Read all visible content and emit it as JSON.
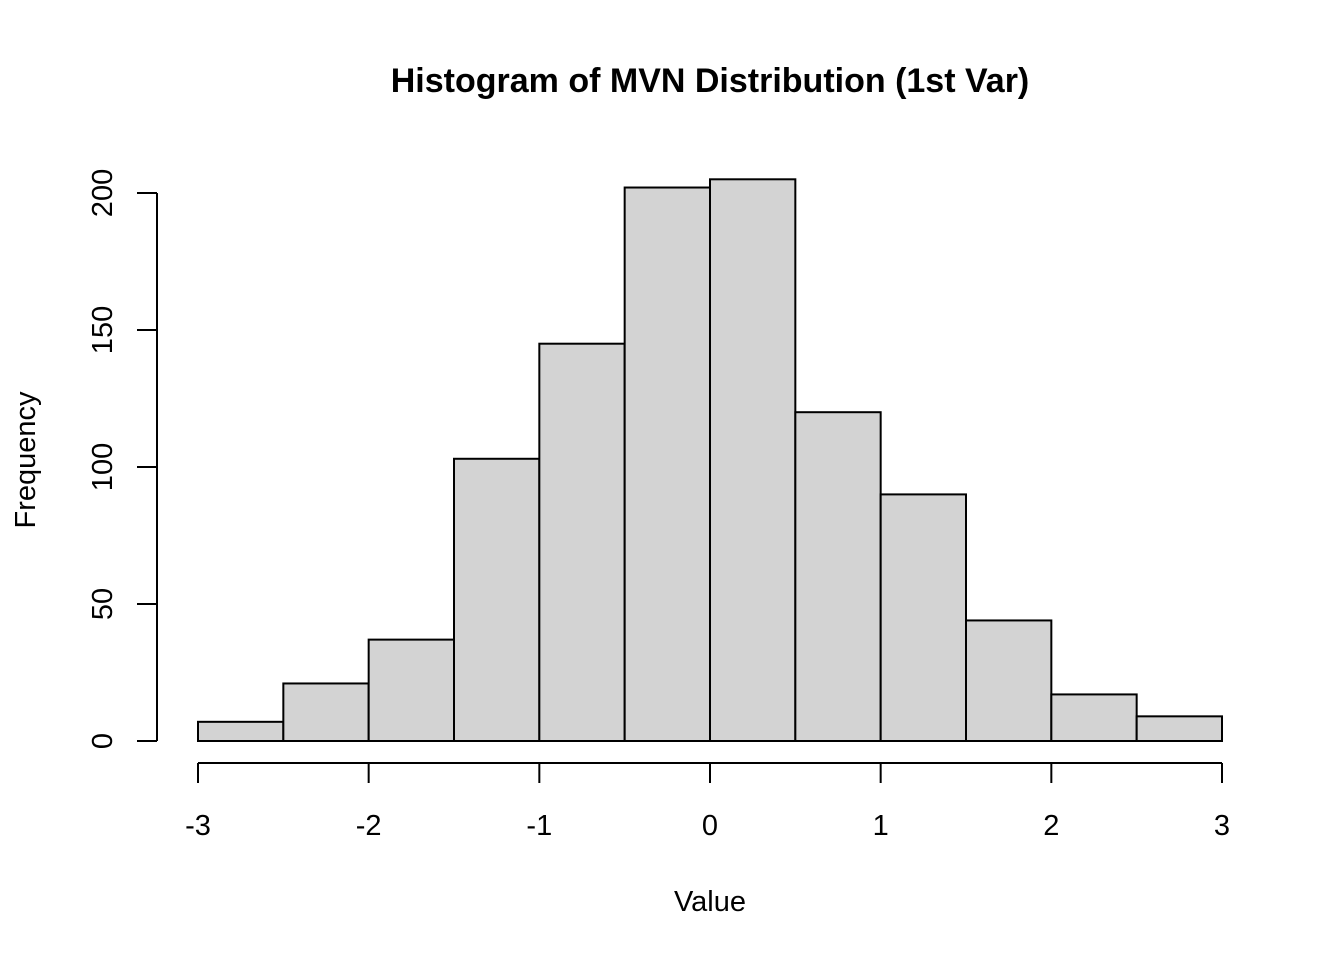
{
  "chart_data": {
    "type": "bar",
    "title": "Histogram of MVN Distribution (1st Var)",
    "xlabel": "Value",
    "ylabel": "Frequency",
    "bins": [
      [
        -3.0,
        -2.5
      ],
      [
        -2.5,
        -2.0
      ],
      [
        -2.0,
        -1.5
      ],
      [
        -1.5,
        -1.0
      ],
      [
        -1.0,
        -0.5
      ],
      [
        -0.5,
        0.0
      ],
      [
        0.0,
        0.5
      ],
      [
        0.5,
        1.0
      ],
      [
        1.0,
        1.5
      ],
      [
        1.5,
        2.0
      ],
      [
        2.0,
        2.5
      ],
      [
        2.5,
        3.0
      ]
    ],
    "values": [
      7,
      21,
      37,
      103,
      145,
      202,
      205,
      120,
      90,
      44,
      17,
      9
    ],
    "xlim": [
      -3,
      3
    ],
    "ylim": [
      0,
      205
    ],
    "xticks": [
      -3,
      -2,
      -1,
      0,
      1,
      2,
      3
    ],
    "yticks": [
      0,
      50,
      100,
      150,
      200
    ],
    "xtick_labels": [
      "-3",
      "-2",
      "-1",
      "0",
      "1",
      "2",
      "3"
    ],
    "ytick_labels": [
      "0",
      "50",
      "100",
      "150",
      "200"
    ],
    "bar_fill": "#d3d3d3",
    "bar_stroke": "#000000",
    "grid": false,
    "legend": "none"
  }
}
